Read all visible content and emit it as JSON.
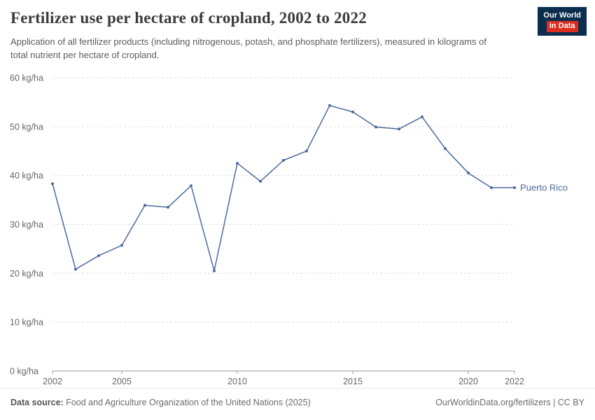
{
  "header": {
    "title": "Fertilizer use per hectare of cropland, 2002 to 2022",
    "subtitle": "Application of all fertilizer products (including nitrogenous, potash, and phosphate fertilizers), measured in kilograms of total nutrient per hectare of cropland.",
    "logo": {
      "line1": "Our World",
      "line2": "in Data"
    }
  },
  "chart_data": {
    "type": "line",
    "title": "Fertilizer use per hectare of cropland, 2002 to 2022",
    "xlabel": "",
    "ylabel": "kg/ha",
    "x": [
      2002,
      2003,
      2004,
      2005,
      2006,
      2007,
      2008,
      2009,
      2010,
      2011,
      2012,
      2013,
      2014,
      2015,
      2016,
      2017,
      2018,
      2019,
      2020,
      2021,
      2022
    ],
    "series": [
      {
        "name": "Puerto Rico",
        "color": "#4C6A9C",
        "values": [
          38.3,
          20.8,
          23.6,
          25.7,
          33.9,
          33.5,
          37.9,
          20.5,
          42.5,
          38.8,
          43.1,
          45.0,
          54.3,
          53.0,
          49.9,
          49.5,
          52.0,
          45.5,
          40.5,
          37.5,
          37.5
        ]
      }
    ],
    "xlim": [
      2002,
      2022
    ],
    "ylim": [
      0,
      60
    ],
    "x_ticks": [
      2002,
      2005,
      2010,
      2015,
      2020,
      2022
    ],
    "y_ticks": [
      0,
      10,
      20,
      30,
      40,
      50,
      60
    ],
    "y_tick_labels": [
      "0 kg/ha",
      "10 kg/ha",
      "20 kg/ha",
      "30 kg/ha",
      "40 kg/ha",
      "50 kg/ha",
      "60 kg/ha"
    ],
    "grid": "horizontal-dashed",
    "legend_position": "end-of-line-label"
  },
  "footer": {
    "source_label": "Data source:",
    "source_text": "Food and Agriculture Organization of the United Nations (2025)",
    "right_text": "OurWorldinData.org/fertilizers | CC BY"
  },
  "colors": {
    "line": "#4C6A9C",
    "entity_label": "#4C6A9C",
    "grid": "#dcdcdc",
    "axis": "#999999",
    "tick_text": "#666666",
    "logo_bg": "#0b2e4f",
    "logo_red": "#dc2d1f"
  }
}
